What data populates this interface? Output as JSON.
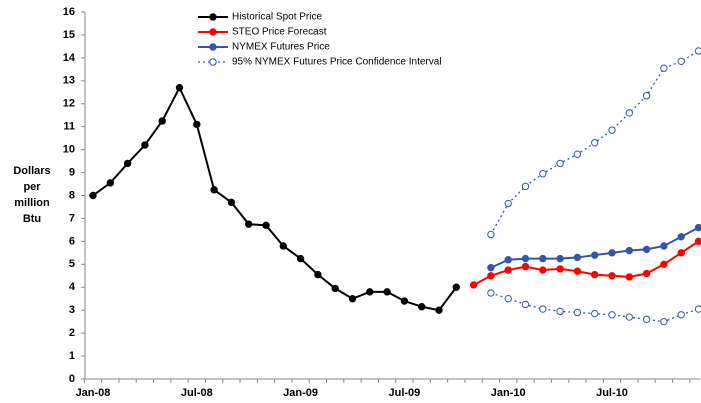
{
  "chart_data": {
    "type": "line",
    "ylabel": [
      "Dollars",
      "per",
      "million",
      "Btu"
    ],
    "categories": [
      "Jan-08",
      null,
      null,
      null,
      null,
      null,
      "Jul-08",
      null,
      null,
      null,
      null,
      null,
      "Jan-09",
      null,
      null,
      null,
      null,
      null,
      "Jul-09",
      null,
      null,
      null,
      null,
      null,
      "Jan-10",
      null,
      null,
      null,
      null,
      null,
      "Jul-10",
      null,
      null,
      null,
      null,
      null
    ],
    "ylim": [
      0,
      16
    ],
    "yticks": [
      0,
      1,
      2,
      3,
      4,
      5,
      6,
      7,
      8,
      9,
      10,
      11,
      12,
      13,
      14,
      15,
      16
    ],
    "series": [
      {
        "name": "Historical Spot Price",
        "color": "#000000",
        "style": "solid",
        "values": [
          8.0,
          8.55,
          9.4,
          10.2,
          11.25,
          12.7,
          11.1,
          8.25,
          7.7,
          6.75,
          6.7,
          5.8,
          5.25,
          4.55,
          3.95,
          3.5,
          3.8,
          3.8,
          3.4,
          3.15,
          3.0,
          4.0,
          null,
          null,
          null,
          null,
          null,
          null,
          null,
          null,
          null,
          null,
          null,
          null,
          null,
          null
        ]
      },
      {
        "name": "STEO Price Forecast",
        "color": "#ff0000",
        "style": "solid",
        "values": [
          null,
          null,
          null,
          null,
          null,
          null,
          null,
          null,
          null,
          null,
          null,
          null,
          null,
          null,
          null,
          null,
          null,
          null,
          null,
          null,
          null,
          null,
          4.1,
          4.5,
          4.75,
          4.9,
          4.75,
          4.8,
          4.7,
          4.55,
          4.5,
          4.45,
          4.6,
          5.0,
          5.5,
          6.0
        ]
      },
      {
        "name": "NYMEX Futures Price",
        "color": "#3355aa",
        "style": "solid",
        "values": [
          null,
          null,
          null,
          null,
          null,
          null,
          null,
          null,
          null,
          null,
          null,
          null,
          null,
          null,
          null,
          null,
          null,
          null,
          null,
          null,
          null,
          null,
          null,
          4.85,
          5.2,
          5.25,
          5.25,
          5.25,
          5.3,
          5.4,
          5.5,
          5.6,
          5.65,
          5.8,
          6.2,
          6.6
        ]
      },
      {
        "name": "95% NYMEX Futures Price Confidence Interval",
        "color": "#3355aa",
        "style": "dotted",
        "values": [
          null,
          null,
          null,
          null,
          null,
          null,
          null,
          null,
          null,
          null,
          null,
          null,
          null,
          null,
          null,
          null,
          null,
          null,
          null,
          null,
          null,
          null,
          null,
          6.3,
          7.65,
          8.4,
          8.95,
          9.4,
          9.8,
          10.3,
          10.85,
          11.6,
          12.35,
          13.55,
          13.85,
          14.3
        ],
        "lower": [
          null,
          null,
          null,
          null,
          null,
          null,
          null,
          null,
          null,
          null,
          null,
          null,
          null,
          null,
          null,
          null,
          null,
          null,
          null,
          null,
          null,
          null,
          null,
          3.75,
          3.5,
          3.25,
          3.05,
          2.95,
          2.9,
          2.85,
          2.8,
          2.7,
          2.6,
          2.5,
          2.8,
          3.05
        ]
      }
    ]
  }
}
